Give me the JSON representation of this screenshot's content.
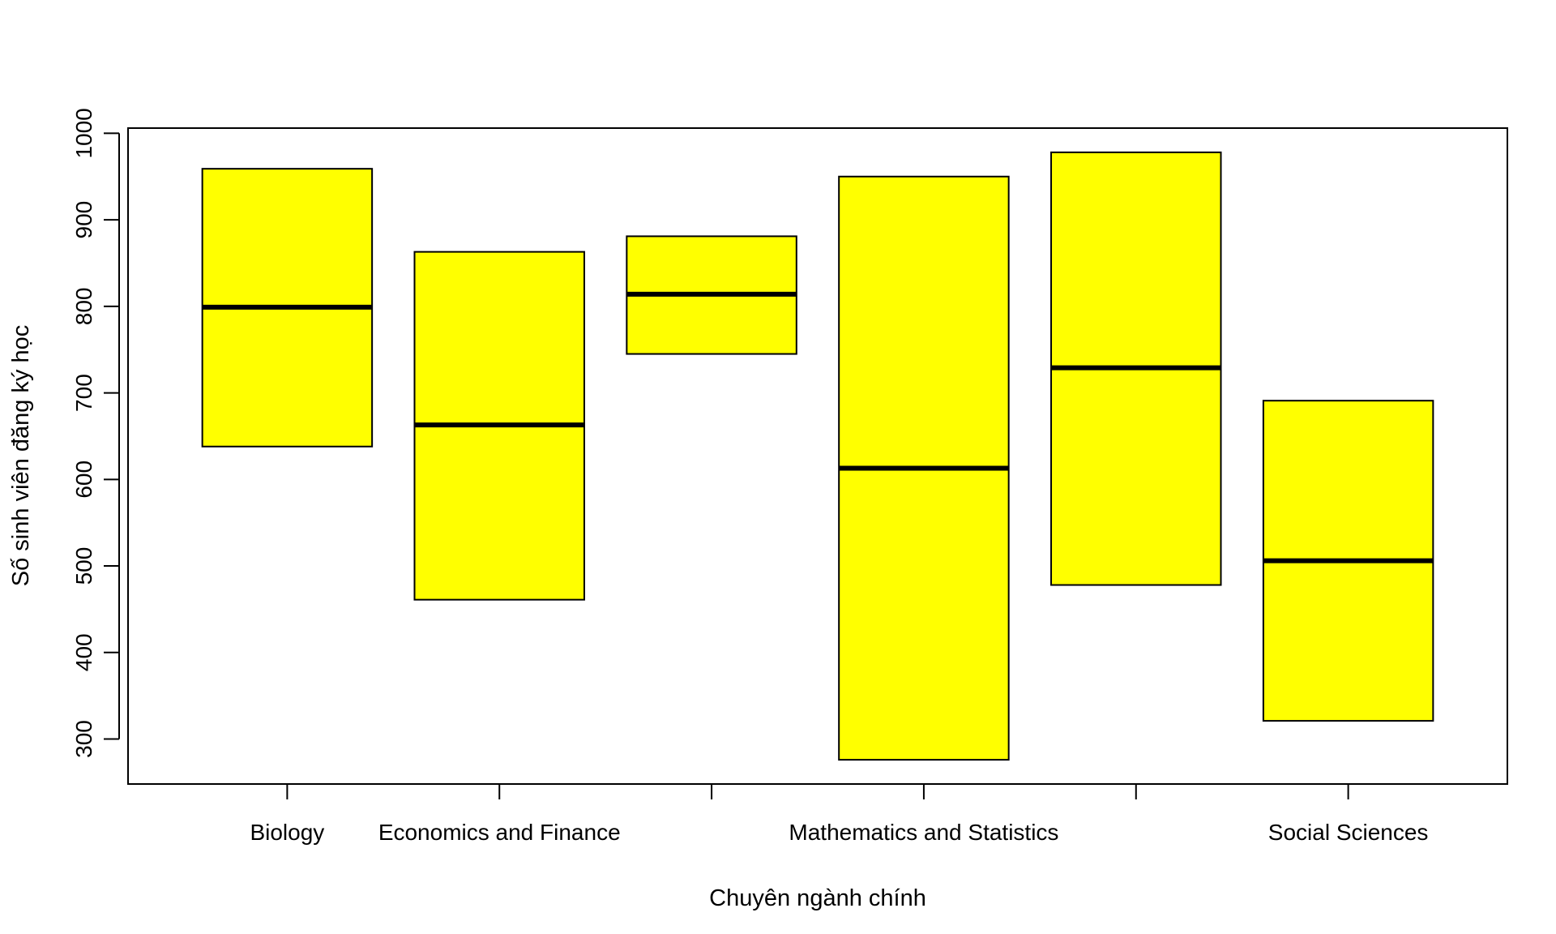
{
  "chart_data": {
    "type": "box",
    "xlabel": "Chuyên ngành chính",
    "ylabel": "Số sinh viên đăng ký học",
    "ylim": [
      248,
      1006
    ],
    "yticks": [
      300,
      400,
      500,
      600,
      700,
      800,
      900,
      1000
    ],
    "grid": false,
    "legend": "none",
    "fill_color": "#ffff00",
    "categories": [
      "Biology",
      "Economics and Finance",
      "",
      "Mathematics and Statistics",
      "",
      "Social Sciences"
    ],
    "boxes": [
      {
        "category": "Biology",
        "low": 638,
        "median": 799,
        "high": 959
      },
      {
        "category": "Economics and Finance",
        "low": 461,
        "median": 663,
        "high": 863
      },
      {
        "category": "",
        "low": 745,
        "median": 814,
        "high": 881
      },
      {
        "category": "Mathematics and Statistics",
        "low": 276,
        "median": 613,
        "high": 950
      },
      {
        "category": "",
        "low": 478,
        "median": 729,
        "high": 978
      },
      {
        "category": "Social Sciences",
        "low": 321,
        "median": 506,
        "high": 691
      }
    ]
  }
}
